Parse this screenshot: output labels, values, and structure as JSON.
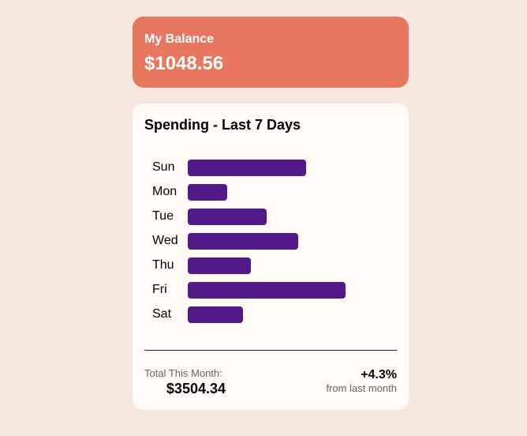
{
  "balance": {
    "label": "My Balance",
    "amount": "$1048.56",
    "color": "#e8775f"
  },
  "spending": {
    "title": "Spending - Last 7 Days",
    "bar_color": "#521988"
  },
  "chart_data": {
    "type": "bar",
    "orientation": "horizontal",
    "title": "Spending - Last 7 Days",
    "categories": [
      "Sun",
      "Mon",
      "Tue",
      "Wed",
      "Thu",
      "Fri",
      "Sat"
    ],
    "values": [
      150,
      50,
      100,
      140,
      80,
      200,
      70
    ],
    "xlabel": "",
    "ylabel": "",
    "grid": false
  },
  "summary": {
    "total_label": "Total This Month:",
    "total_value": "$3504.34",
    "change_value": "+4.3%",
    "change_label": "from last month"
  }
}
